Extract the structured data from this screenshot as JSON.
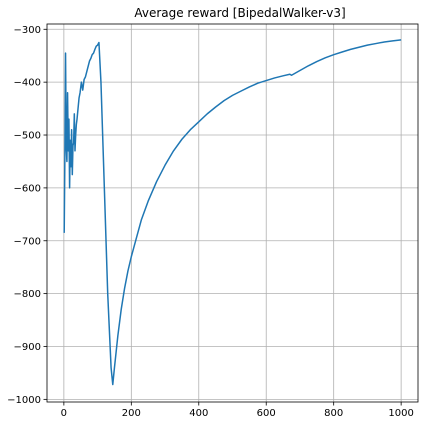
{
  "chart_data": {
    "type": "line",
    "title": "Average reward [BipedalWalker-v3]",
    "xlabel": "",
    "ylabel": "",
    "xlim": [
      -50,
      1050
    ],
    "ylim": [
      -1005,
      -290
    ],
    "xticks": [
      0,
      200,
      400,
      600,
      800,
      1000
    ],
    "xtick_labels": [
      "0",
      "200",
      "400",
      "600",
      "800",
      "1000"
    ],
    "yticks": [
      -1000,
      -900,
      -800,
      -700,
      -600,
      -500,
      -400,
      -300
    ],
    "ytick_labels": [
      "−1000",
      "−900",
      "−800",
      "−700",
      "−600",
      "−500",
      "−400",
      "−300"
    ],
    "grid": true,
    "line_color": "#1f77b4",
    "series": [
      {
        "x": [
          1,
          3,
          5,
          7,
          9,
          11,
          13,
          15,
          17,
          19,
          21,
          23,
          25,
          27,
          29,
          31,
          33,
          35,
          37,
          39,
          42,
          45,
          48,
          52,
          56,
          60,
          64,
          68,
          72,
          76,
          80,
          84,
          88,
          92,
          96,
          100,
          104,
          110,
          120,
          130,
          140,
          145,
          150,
          160,
          170,
          180,
          190,
          200,
          215,
          230,
          250,
          275,
          300,
          325,
          350,
          375,
          400,
          425,
          450,
          475,
          500,
          525,
          550,
          575,
          600,
          625,
          650,
          670,
          675,
          700,
          725,
          750,
          775,
          800,
          825,
          850,
          875,
          900,
          925,
          950,
          975,
          1000
        ],
        "y": [
          -685,
          -540,
          -345,
          -520,
          -550,
          -420,
          -530,
          -470,
          -600,
          -510,
          -560,
          -490,
          -575,
          -520,
          -515,
          -460,
          -530,
          -500,
          -480,
          -470,
          -450,
          -430,
          -420,
          -400,
          -415,
          -395,
          -390,
          -380,
          -370,
          -360,
          -355,
          -348,
          -345,
          -338,
          -332,
          -330,
          -325,
          -400,
          -600,
          -800,
          -940,
          -972,
          -940,
          -880,
          -830,
          -790,
          -757,
          -730,
          -695,
          -660,
          -625,
          -588,
          -557,
          -530,
          -508,
          -490,
          -475,
          -460,
          -447,
          -435,
          -425,
          -417,
          -409,
          -402,
          -397,
          -392,
          -388,
          -385,
          -387,
          -378,
          -369,
          -361,
          -354,
          -348,
          -343,
          -338,
          -334,
          -330,
          -327,
          -324,
          -322,
          -320
        ]
      }
    ]
  }
}
